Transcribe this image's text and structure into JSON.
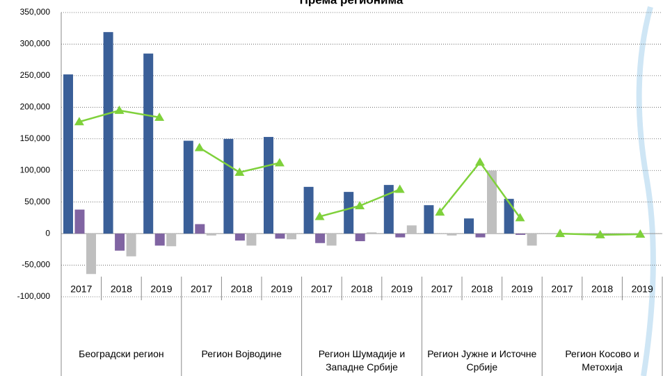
{
  "chart_data": {
    "type": "bar",
    "title": "Према регионима",
    "categories": [
      "2017",
      "2018",
      "2019",
      "2017",
      "2018",
      "2019",
      "2017",
      "2018",
      "2019",
      "2017",
      "2018",
      "2019",
      "2017",
      "2018",
      "2019"
    ],
    "groups": [
      "Београдски регион",
      "Регион Војводине",
      "Регион Шумадије и Западне Србије",
      "Регион Јужне и Источне Србије",
      "Регион Косово и Метохија"
    ],
    "series": [
      {
        "type": "bar",
        "color": "#3a5f98",
        "values": [
          252000,
          319000,
          285000,
          147000,
          150000,
          153000,
          74000,
          66000,
          77000,
          45000,
          24000,
          55000,
          0,
          0,
          0
        ]
      },
      {
        "type": "bar",
        "color": "#8064a2",
        "values": [
          38000,
          -27000,
          -19000,
          15000,
          -11000,
          -8000,
          -15000,
          -12000,
          -6000,
          0,
          -6000,
          -2000,
          0,
          0,
          0
        ]
      },
      {
        "type": "bar",
        "color": "#bfbfbf",
        "values": [
          -64000,
          -36000,
          -20000,
          -3000,
          -19000,
          -9000,
          -19000,
          2000,
          13000,
          -3000,
          100000,
          -19000,
          0,
          0,
          0
        ]
      },
      {
        "type": "line",
        "color": "#7fd13b",
        "values": [
          177000,
          195000,
          184000,
          136000,
          97000,
          112000,
          27000,
          44000,
          70000,
          34000,
          113000,
          25000,
          0,
          -2000,
          -1000
        ]
      }
    ],
    "ylim": [
      -100000,
      350000
    ],
    "yticks": [
      {
        "value": -100000,
        "label": "-100,000"
      },
      {
        "value": -50000,
        "label": "-50,000"
      },
      0,
      {
        "value": 50000,
        "label": "50,000"
      },
      {
        "value": 100000,
        "label": "100,000"
      },
      {
        "value": 150000,
        "label": "150,000"
      },
      {
        "value": 200000,
        "label": "200,000"
      },
      {
        "value": 250000,
        "label": "250,000"
      },
      {
        "value": 300000,
        "label": "300,000"
      },
      {
        "value": 350000,
        "label": "350,000"
      }
    ],
    "grid": true
  }
}
